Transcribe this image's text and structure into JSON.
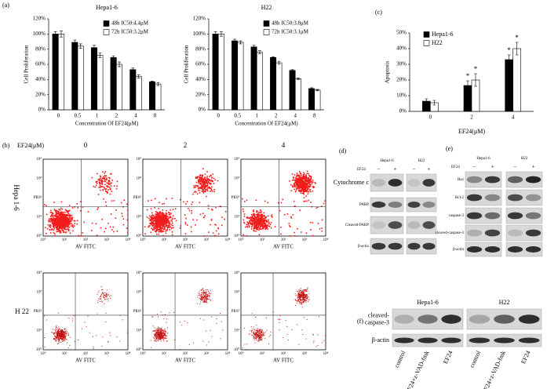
{
  "panel_labels": {
    "a": "(a)",
    "b": "(b)",
    "c": "(c)",
    "d": "(d)",
    "e": "(e)",
    "f": "(f)"
  },
  "chart_data": [
    {
      "type": "bar",
      "title": "Hepa1-6",
      "x_label": "Concentration Of EF24(μM)",
      "y_label": "Cell Proliferation",
      "categories": [
        "0",
        "0.5",
        "1",
        "2",
        "4",
        "8"
      ],
      "series": [
        {
          "name": "48h IC50:4.4μM",
          "color": "#000000",
          "values": [
            100,
            89,
            82,
            69,
            53,
            37
          ],
          "errors": [
            3,
            3,
            3,
            2,
            2,
            1
          ]
        },
        {
          "name": "72h IC50:3.2μM",
          "color": "#ffffff",
          "values": [
            100,
            84,
            72,
            60,
            44,
            34
          ],
          "errors": [
            4,
            3,
            3,
            3,
            2,
            2
          ]
        }
      ],
      "ylim": [
        0,
        120
      ],
      "yticks": [
        {
          "value": 0,
          "label": "0%"
        },
        {
          "value": 20,
          "label": "20%"
        },
        {
          "value": 40,
          "label": "40%"
        },
        {
          "value": 60,
          "label": "60%"
        },
        {
          "value": 80,
          "label": "80%"
        },
        {
          "value": 100,
          "label": "100%"
        },
        {
          "value": 120,
          "label": "120%"
        }
      ],
      "legend": "upper right"
    },
    {
      "type": "bar",
      "title": "H22",
      "x_label": "Concentration Of EF24(μM)",
      "y_label": "Cell Proliferation",
      "categories": [
        "0",
        "0.5",
        "1",
        "2",
        "4",
        "8"
      ],
      "series": [
        {
          "name": "48h IC50:3.8μM",
          "color": "#000000",
          "values": [
            100,
            91,
            83,
            69,
            52,
            28
          ],
          "errors": [
            3,
            2,
            2,
            1,
            1,
            1
          ]
        },
        {
          "name": "72h IC50:3.1μM",
          "color": "#ffffff",
          "values": [
            100,
            89,
            76,
            62,
            41,
            26
          ],
          "errors": [
            3,
            2,
            2,
            2,
            1,
            1
          ]
        }
      ],
      "ylim": [
        0,
        120
      ],
      "yticks": [
        {
          "value": 0,
          "label": "0%"
        },
        {
          "value": 20,
          "label": "20%"
        },
        {
          "value": 40,
          "label": "40%"
        },
        {
          "value": 60,
          "label": "60%"
        },
        {
          "value": 80,
          "label": "80%"
        },
        {
          "value": 100,
          "label": "100%"
        },
        {
          "value": 120,
          "label": "120%"
        }
      ],
      "legend": "upper right"
    },
    {
      "type": "bar",
      "x_label": "EF24(μM)",
      "y_label": "Apoptosis",
      "categories": [
        "0",
        "2",
        "4"
      ],
      "series": [
        {
          "name": "Hepa1-6",
          "color": "#000000",
          "values": [
            6.5,
            16.5,
            33
          ],
          "errors": [
            1.5,
            3,
            3
          ],
          "markers": [
            null,
            "*",
            "*"
          ]
        },
        {
          "name": "H22",
          "color": "#ffffff",
          "values": [
            5.5,
            20,
            40
          ],
          "errors": [
            1.5,
            4,
            4
          ],
          "markers": [
            null,
            "*",
            "*"
          ]
        }
      ],
      "ylim": [
        0,
        50
      ],
      "yticks": [
        {
          "value": 0,
          "label": "0%"
        },
        {
          "value": 10,
          "label": "10%"
        },
        {
          "value": 20,
          "label": "20%"
        },
        {
          "value": 30,
          "label": "30%"
        },
        {
          "value": 40,
          "label": "40%"
        },
        {
          "value": 50,
          "label": "50%"
        }
      ],
      "legend": "upper left"
    }
  ],
  "flow_cytometry": {
    "dose_label": "EF24(μM)",
    "doses": [
      "0",
      "2",
      "4"
    ],
    "cell_lines": [
      "Hepa 1-6",
      "H 22"
    ],
    "x_label": "AV FITC",
    "y_label": "PI",
    "tick_labels": [
      "10⁰",
      "10¹",
      "10²",
      "10³",
      "10⁴"
    ]
  },
  "blot_d": {
    "groups": [
      "Hepa1-6",
      "H22"
    ],
    "treatment": "EF24",
    "lane_signs": [
      "−",
      "+"
    ],
    "rows": [
      "Cytochrome c",
      "PARP",
      "Cleaved-PARP",
      "β-actin"
    ]
  },
  "blot_e": {
    "groups": [
      "Hepa1-6",
      "H22"
    ],
    "treatment": "EF24",
    "lane_signs": [
      "−",
      "+"
    ],
    "rows": [
      "Bax",
      "Bcl-2",
      "caspase-3",
      "cleaved-caspase-3",
      "β-actin"
    ]
  },
  "blot_f": {
    "groups": [
      "Hepa1-6",
      "H22"
    ],
    "rows": [
      [
        "cleaved-",
        "caspase-3"
      ],
      [
        "β-actin"
      ]
    ],
    "lanes": [
      "control",
      "EF24+z-VAD-fmk",
      "EF24"
    ]
  }
}
